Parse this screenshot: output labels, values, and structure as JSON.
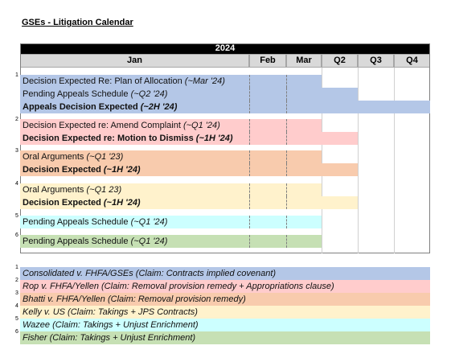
{
  "header": {
    "title": "GSEs - Litigation Calendar"
  },
  "calendar": {
    "year": "2024",
    "columns": [
      "Jan",
      "Feb",
      "Mar",
      "Q2",
      "Q3",
      "Q4"
    ],
    "groups": [
      {
        "number": "1",
        "color": "#b4c7e7",
        "rows": [
          {
            "text": "Decision Expected Re: Plan of Allocation ",
            "note": "(~Mar '24)",
            "bold": false,
            "ends_in": "Mar"
          },
          {
            "text": "Pending Appeals Schedule ",
            "note": "(~Q2 '24)",
            "bold": false,
            "ends_in": "Q2"
          },
          {
            "text": "Appeals Decision Expected ",
            "note": "(~2H '24)",
            "bold": true,
            "ends_in": "Q4"
          }
        ]
      },
      {
        "number": "2",
        "color": "#ffcccc",
        "rows": [
          {
            "text": "Decision Expected re: Amend Complaint ",
            "note": "(~Q1 '24)",
            "bold": false,
            "ends_in": "Mar"
          },
          {
            "text": "Decision Expected re: Motion to Dismiss ",
            "note": "(~1H '24)",
            "bold": true,
            "ends_in": "Q2"
          }
        ]
      },
      {
        "number": "3",
        "color": "#f8cbad",
        "rows": [
          {
            "text": "Oral Arguments ",
            "note": "(~Q1 '23)",
            "bold": false,
            "ends_in": "Mar"
          },
          {
            "text": "Decision Expected ",
            "note": "(~1H '24)",
            "bold": true,
            "ends_in": "Q2"
          }
        ]
      },
      {
        "number": "4",
        "color": "#fff2cc",
        "rows": [
          {
            "text": "Oral Arguments ",
            "note": "(~Q1 23)",
            "bold": false,
            "ends_in": "Mar"
          },
          {
            "text": "Decision Expected ",
            "note": "(~1H '24)",
            "bold": true,
            "ends_in": "Q2"
          }
        ]
      },
      {
        "number": "5",
        "color": "#ccffff",
        "rows": [
          {
            "text": "Pending Appeals Schedule ",
            "note": "(~Q1 '24)",
            "bold": false,
            "ends_in": "Mar"
          }
        ]
      },
      {
        "number": "6",
        "color": "#c6e0b4",
        "rows": [
          {
            "text": "Pending Appeals Schedule ",
            "note": "(~Q1 '24)",
            "bold": false,
            "ends_in": "Mar"
          }
        ]
      }
    ]
  },
  "legend": [
    {
      "number": "1",
      "text": "Consolidated v. FHFA/GSEs (Claim: Contracts implied covenant)",
      "color": "#b4c7e7"
    },
    {
      "number": "2",
      "text": "Rop v. FHFA/Yellen (Claim: Removal provision remedy + Appropriations clause)",
      "color": "#ffcccc"
    },
    {
      "number": "3",
      "text": "Bhatti v. FHFA/Yellen (Claim: Removal provision remedy)",
      "color": "#f8cbad"
    },
    {
      "number": "4",
      "text": "Kelly v. US (Claim: Takings + JPS Contracts)",
      "color": "#fff2cc"
    },
    {
      "number": "5",
      "text": "Wazee (Claim: Takings + Unjust Enrichment)",
      "color": "#ccffff"
    },
    {
      "number": "6",
      "text": "Fisher (Claim: Takings + Unjust Enrichment)",
      "color": "#c6e0b4"
    }
  ]
}
